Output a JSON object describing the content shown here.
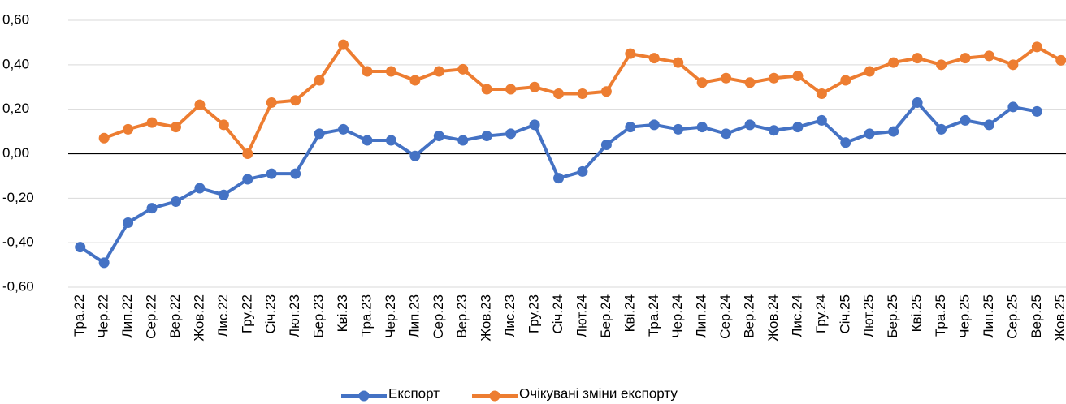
{
  "chart_data": {
    "type": "line",
    "categories": [
      "Тра.22",
      "Чер.22",
      "Лип.22",
      "Сер.22",
      "Вер.22",
      "Жов.22",
      "Лис.22",
      "Гру.22",
      "Січ.23",
      "Лют.23",
      "Бер.23",
      "Кві.23",
      "Тра.23",
      "Чер.23",
      "Лип.23",
      "Сер.23",
      "Вер.23",
      "Жов.23",
      "Лис.23",
      "Гру.23",
      "Січ.24",
      "Лют.24",
      "Бер.24",
      "Кві.24",
      "Тра.24",
      "Чер.24",
      "Лип.24",
      "Сер.24",
      "Вер.24",
      "Жов.24",
      "Лис.24",
      "Гру.24",
      "Січ.25",
      "Лют.25",
      "Бер.25",
      "Кві.25",
      "Тра.25",
      "Чер.25",
      "Лип.25",
      "Сер.25",
      "Вер.25",
      "Жов.25"
    ],
    "series": [
      {
        "name": "Експорт",
        "color": "#4472c4",
        "values": [
          -0.42,
          -0.49,
          -0.31,
          -0.245,
          -0.215,
          -0.155,
          -0.185,
          -0.115,
          -0.09,
          -0.09,
          0.09,
          0.11,
          0.06,
          0.06,
          -0.01,
          0.08,
          0.06,
          0.08,
          0.09,
          0.13,
          -0.11,
          -0.08,
          0.04,
          0.12,
          0.13,
          0.11,
          0.12,
          0.09,
          0.13,
          0.105,
          0.12,
          0.15,
          0.05,
          0.09,
          0.1,
          0.23,
          0.11,
          0.15,
          0.13,
          0.21,
          0.19,
          null
        ]
      },
      {
        "name": "Очікувані зміни експорту",
        "color": "#ed7d31",
        "values": [
          null,
          0.07,
          0.11,
          0.14,
          0.12,
          0.22,
          0.13,
          0.0,
          0.23,
          0.24,
          0.33,
          0.49,
          0.37,
          0.37,
          0.33,
          0.37,
          0.38,
          0.29,
          0.29,
          0.3,
          0.27,
          0.27,
          0.28,
          0.45,
          0.43,
          0.41,
          0.32,
          0.34,
          0.32,
          0.34,
          0.35,
          0.27,
          0.33,
          0.37,
          0.41,
          0.43,
          0.4,
          0.43,
          0.44,
          0.4,
          0.48,
          0.42
        ]
      }
    ],
    "ylim": [
      -0.6,
      0.6
    ],
    "yticks": [
      {
        "value": -0.6,
        "label": "-0,60"
      },
      {
        "value": -0.4,
        "label": "-0,40"
      },
      {
        "value": -0.2,
        "label": "-0,20"
      },
      {
        "value": 0,
        "label": "0,00"
      },
      {
        "value": 0.2,
        "label": "0,20"
      },
      {
        "value": 0.4,
        "label": "0,40"
      },
      {
        "value": 0.6,
        "label": "0,60"
      }
    ],
    "grid": true,
    "legend": "bottom"
  }
}
